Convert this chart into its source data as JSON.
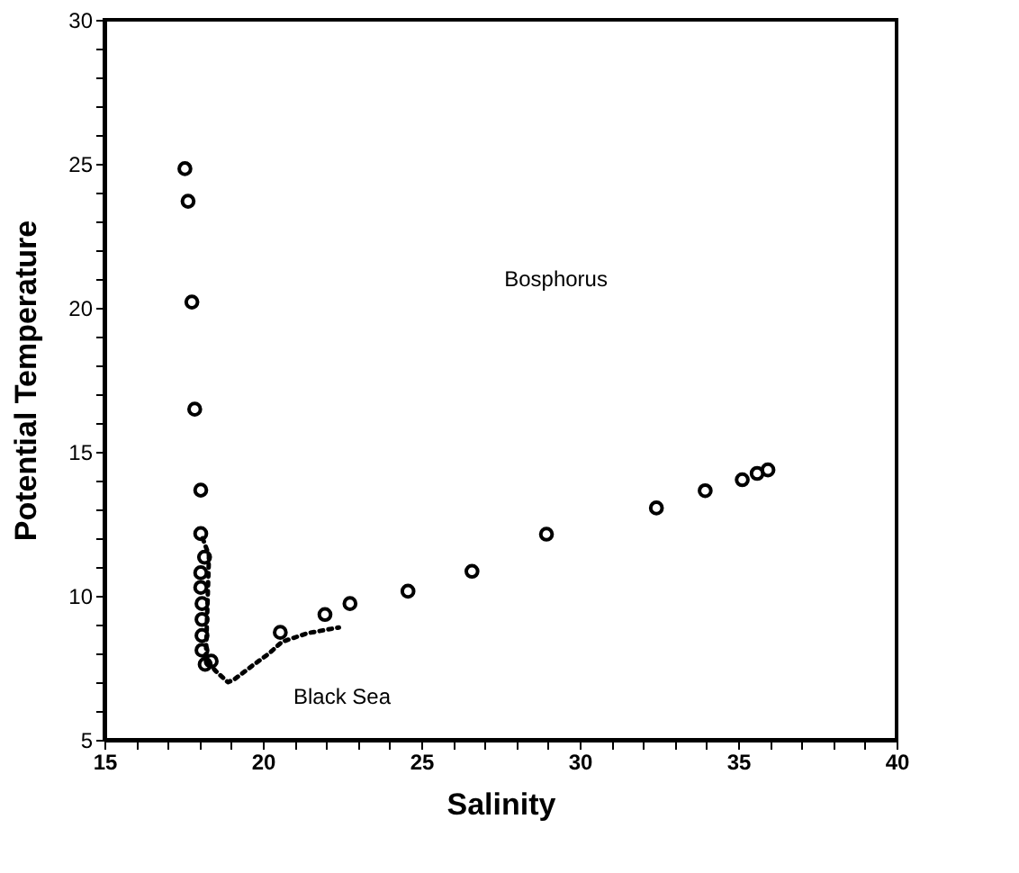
{
  "chart_data": {
    "type": "scatter",
    "xlabel": "Salinity",
    "ylabel": "Potential   Temperature",
    "xlim": [
      15,
      40
    ],
    "ylim": [
      5,
      30
    ],
    "xticks": [
      15,
      {
        "value": 16,
        "label": null
      },
      {
        "value": 17,
        "label": null
      },
      {
        "value": 18,
        "label": null
      },
      {
        "value": 19,
        "label": null
      },
      20,
      {
        "value": 21,
        "label": null
      },
      {
        "value": 22,
        "label": null
      },
      {
        "value": 23,
        "label": null
      },
      {
        "value": 24,
        "label": null
      },
      25,
      {
        "value": 26,
        "label": null
      },
      {
        "value": 27,
        "label": null
      },
      {
        "value": 28,
        "label": null
      },
      {
        "value": 29,
        "label": null
      },
      30,
      {
        "value": 31,
        "label": null
      },
      {
        "value": 32,
        "label": null
      },
      {
        "value": 33,
        "label": null
      },
      {
        "value": 34,
        "label": null
      },
      35,
      {
        "value": 36,
        "label": null
      },
      {
        "value": 37,
        "label": null
      },
      {
        "value": 38,
        "label": null
      },
      {
        "value": 39,
        "label": null
      },
      40
    ],
    "yticks": [
      5,
      {
        "value": 6,
        "label": null
      },
      {
        "value": 7,
        "label": null
      },
      {
        "value": 8,
        "label": null
      },
      {
        "value": 9,
        "label": null
      },
      10,
      {
        "value": 11,
        "label": null
      },
      {
        "value": 12,
        "label": null
      },
      {
        "value": 13,
        "label": null
      },
      {
        "value": 14,
        "label": null
      },
      15,
      {
        "value": 16,
        "label": null
      },
      {
        "value": 17,
        "label": null
      },
      {
        "value": 18,
        "label": null
      },
      {
        "value": 19,
        "label": null
      },
      20,
      {
        "value": 21,
        "label": null
      },
      {
        "value": 22,
        "label": null
      },
      {
        "value": 23,
        "label": null
      },
      {
        "value": 24,
        "label": null
      },
      25,
      {
        "value": 26,
        "label": null
      },
      {
        "value": 27,
        "label": null
      },
      {
        "value": 28,
        "label": null
      },
      {
        "value": 29,
        "label": null
      },
      30
    ],
    "grid": false,
    "series": [
      {
        "marker": "circle",
        "color": "#000000",
        "x": [
          17.54,
          17.64,
          17.76,
          17.85,
          18.04,
          18.04,
          18.16,
          18.04,
          18.04,
          18.08,
          18.08,
          18.08,
          18.08,
          18.18,
          18.37,
          20.55,
          21.96,
          22.75,
          24.58,
          26.6,
          28.95,
          32.42,
          33.96,
          35.13,
          35.6,
          35.94
        ],
        "values": [
          24.83,
          23.7,
          20.2,
          16.48,
          13.67,
          12.16,
          11.34,
          10.8,
          10.29,
          9.73,
          9.18,
          8.62,
          8.11,
          7.62,
          7.73,
          8.73,
          9.35,
          9.73,
          10.16,
          10.85,
          12.14,
          13.05,
          13.65,
          14.03,
          14.25,
          14.37
        ]
      },
      {
        "type": "line",
        "line_style": "dotted",
        "color": "#000000",
        "x": [
          18.1,
          18.3,
          18.2,
          18.5,
          18.9,
          19.1,
          19.7,
          20.2,
          20.6,
          21.4,
          22.4
        ],
        "values": [
          12.0,
          11.4,
          7.8,
          7.4,
          7.0,
          7.1,
          7.6,
          8.0,
          8.4,
          8.7,
          8.9
        ]
      }
    ],
    "annotations": [
      "Bosphorus",
      "Black Sea"
    ]
  }
}
